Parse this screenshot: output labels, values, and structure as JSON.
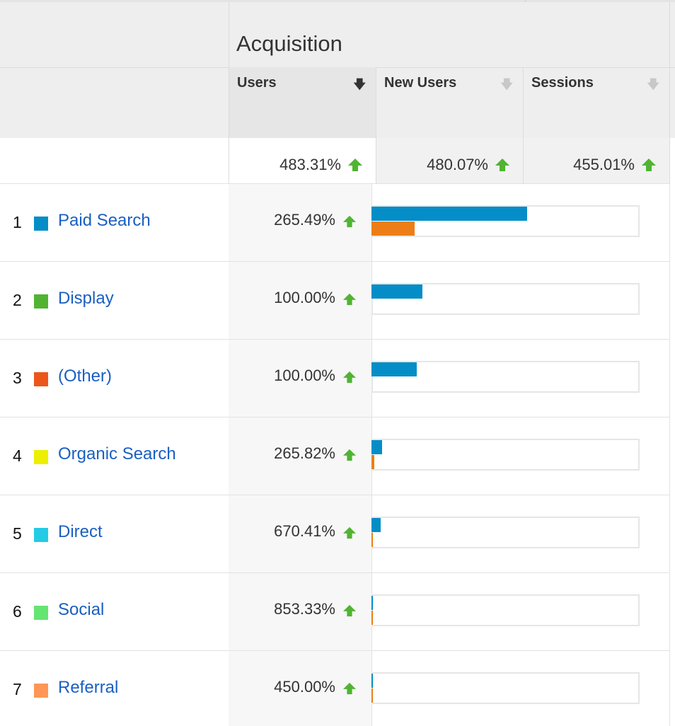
{
  "header": {
    "group_title": "Acquisition",
    "columns": [
      {
        "label": "Users",
        "sort_icon": "sort-desc-icon",
        "active": true
      },
      {
        "label": "New Users",
        "sort_icon": "sort-desc-icon",
        "active": false
      },
      {
        "label": "Sessions",
        "sort_icon": "sort-desc-icon",
        "active": false
      }
    ]
  },
  "totals": {
    "users": "483.31%",
    "new_users": "480.07%",
    "sessions": "455.01%",
    "trend_icon": "up-arrow-icon"
  },
  "colors": {
    "link": "#1a5fc2",
    "up_arrow": "#50b432",
    "bar_current": "#058dc7",
    "bar_previous": "#ed7e17"
  },
  "rows": [
    {
      "rank": "1",
      "channel": "Paid Search",
      "swatch": "#058dc7",
      "users_change": "265.49%",
      "bar_current_fraction": 0.58,
      "bar_previous_fraction": 0.16
    },
    {
      "rank": "2",
      "channel": "Display",
      "swatch": "#50b432",
      "users_change": "100.00%",
      "bar_current_fraction": 0.19,
      "bar_previous_fraction": 0
    },
    {
      "rank": "3",
      "channel": "(Other)",
      "swatch": "#ed561b",
      "users_change": "100.00%",
      "bar_current_fraction": 0.17,
      "bar_previous_fraction": 0
    },
    {
      "rank": "4",
      "channel": "Organic Search",
      "swatch": "#edef00",
      "users_change": "265.82%",
      "bar_current_fraction": 0.04,
      "bar_previous_fraction": 0.011
    },
    {
      "rank": "5",
      "channel": "Direct",
      "swatch": "#24cbe5",
      "users_change": "670.41%",
      "bar_current_fraction": 0.035,
      "bar_previous_fraction": 0.006
    },
    {
      "rank": "6",
      "channel": "Social",
      "swatch": "#64e572",
      "users_change": "853.33%",
      "bar_current_fraction": 0.005,
      "bar_previous_fraction": 0.005
    },
    {
      "rank": "7",
      "channel": "Referral",
      "swatch": "#ff9655",
      "users_change": "450.00%",
      "bar_current_fraction": 0.005,
      "bar_previous_fraction": 0.005
    }
  ]
}
